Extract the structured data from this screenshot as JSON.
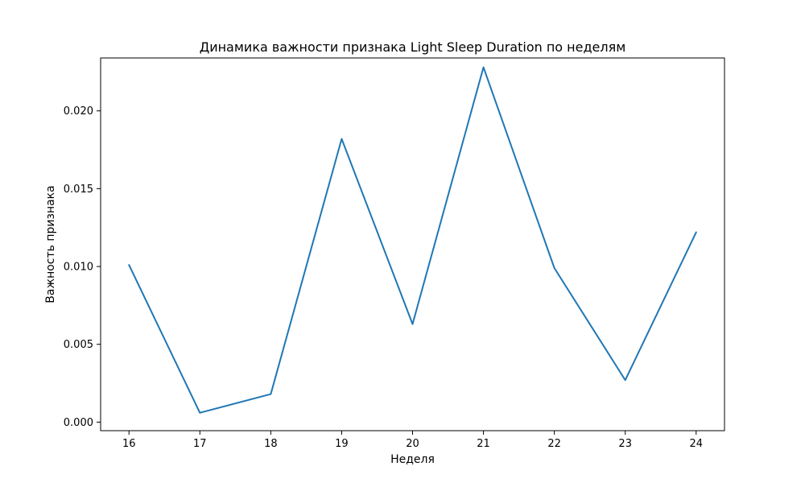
{
  "chart_data": {
    "type": "line",
    "title": "Динамика важности признака Light Sleep Duration по неделям",
    "xlabel": "Неделя",
    "ylabel": "Важность признака",
    "x": [
      16,
      17,
      18,
      19,
      20,
      21,
      22,
      23,
      24
    ],
    "xticks": [
      "16",
      "17",
      "18",
      "19",
      "20",
      "21",
      "22",
      "23",
      "24"
    ],
    "yticks": [
      0.0,
      0.005,
      0.01,
      0.015,
      0.02
    ],
    "ytick_labels": [
      "0.000",
      "0.005",
      "0.010",
      "0.015",
      "0.020"
    ],
    "xlim": [
      15.6,
      24.4
    ],
    "ylim": [
      -0.00055,
      0.0234
    ],
    "grid": false,
    "series": [
      {
        "color": "#1f77b4",
        "values": [
          0.0101,
          0.0006,
          0.0018,
          0.0182,
          0.0063,
          0.0228,
          0.0099,
          0.0027,
          0.0122
        ]
      }
    ]
  }
}
